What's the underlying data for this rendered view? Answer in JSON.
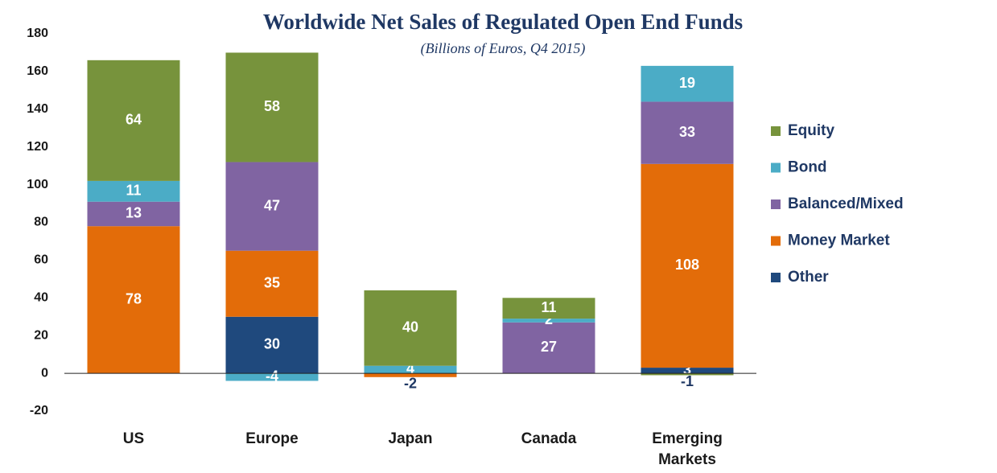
{
  "chart_data": {
    "type": "stacked_bar",
    "title": "Worldwide  Net Sales of Regulated Open End Funds",
    "subtitle": "(Billions of Euros, Q4 2015)",
    "categories": [
      "US",
      "Europe",
      "Japan",
      "Canada",
      "Emerging Markets"
    ],
    "series": [
      {
        "name": "Other",
        "color": "#1f497d",
        "values": [
          0,
          30,
          0,
          0,
          3
        ]
      },
      {
        "name": "Money Market",
        "color": "#e36c09",
        "values": [
          78,
          35,
          -2,
          0,
          108
        ]
      },
      {
        "name": "Balanced/Mixed",
        "color": "#8064a2",
        "values": [
          13,
          47,
          0,
          27,
          33
        ]
      },
      {
        "name": "Bond",
        "color": "#4bacc6",
        "values": [
          11,
          -4,
          4,
          2,
          19
        ]
      },
      {
        "name": "Equity",
        "color": "#77933c",
        "values": [
          64,
          58,
          40,
          11,
          -1
        ]
      }
    ],
    "legend_order": [
      "Equity",
      "Bond",
      "Balanced/Mixed",
      "Money Market",
      "Other"
    ],
    "ylim": [
      -20,
      180
    ],
    "yticks": [
      -20,
      0,
      20,
      40,
      60,
      80,
      100,
      120,
      140,
      160,
      180
    ],
    "grid": false,
    "legend": "right"
  }
}
